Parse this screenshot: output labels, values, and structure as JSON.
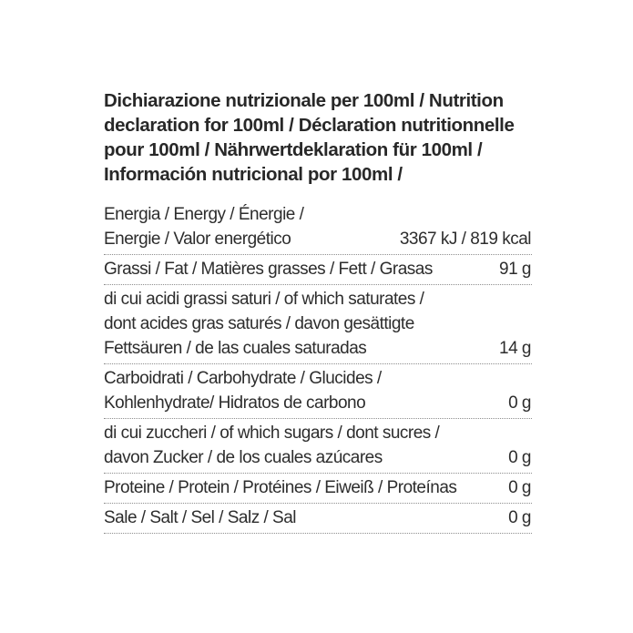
{
  "nutrition_label": {
    "title": "Dichiarazione nutrizionale per 100ml / Nutrition\ndeclaration for 100ml / Déclaration nutritionnelle\npour 100ml / Nährwertdeklaration für 100ml /\nInformación nutricional por 100ml /",
    "rows": [
      {
        "name": "energy",
        "label": "Energia / Energy / Énergie /\nEnergie / Valor energético",
        "value": "3367 kJ / 819 kcal"
      },
      {
        "name": "fat",
        "label": "Grassi / Fat / Matières grasses / Fett / Grasas",
        "value": "91 g"
      },
      {
        "name": "saturates",
        "label": "di cui acidi grassi saturi / of which saturates /\ndont acides gras saturés / davon gesättigte\nFettsäuren / de las cuales saturadas",
        "value": "14 g"
      },
      {
        "name": "carbohydrate",
        "label": "Carboidrati / Carbohydrate / Glucides /\nKohlenhydrate/ Hidratos de carbono",
        "value": "0 g"
      },
      {
        "name": "sugars",
        "label": "di cui zuccheri / of which sugars / dont sucres /\ndavon Zucker / de los cuales azúcares",
        "value": "0 g"
      },
      {
        "name": "protein",
        "label": "Proteine / Protein / Protéines / Eiweiß / Proteínas",
        "value": "0 g"
      },
      {
        "name": "salt",
        "label": "Sale / Salt / Sel / Salz / Sal",
        "value": "0 g"
      }
    ],
    "colors": {
      "text": "#2d2d2d",
      "divider": "#8e8e8e",
      "background": "#ffffff"
    }
  }
}
